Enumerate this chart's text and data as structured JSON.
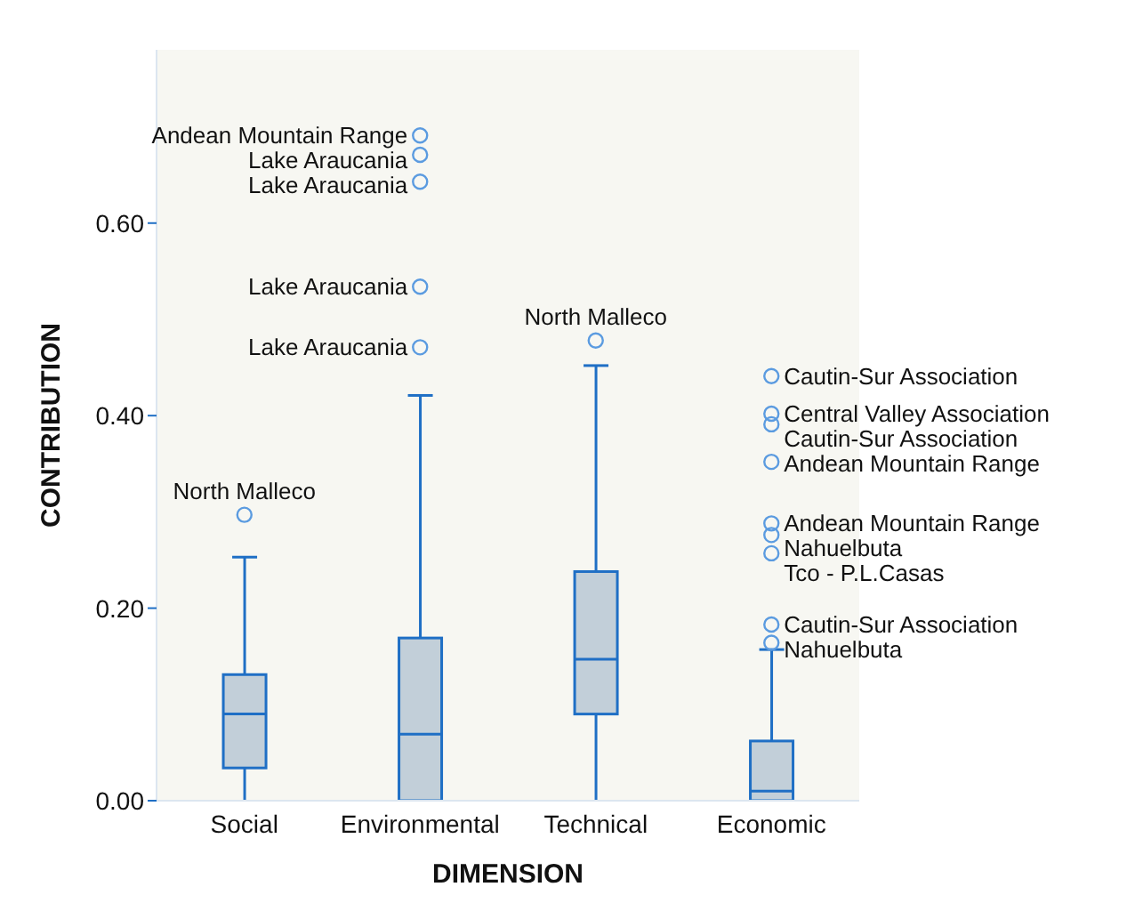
{
  "chart_data": {
    "type": "box",
    "xlabel": "DIMENSION",
    "ylabel": "CONTRIBUTION",
    "categories": [
      "Social",
      "Environmental",
      "Technical",
      "Economic"
    ],
    "color": "#1f6fc5",
    "marker": "circle",
    "boxes": [
      {
        "low": 0,
        "q1": 0.034,
        "median": 0.09,
        "q3": 0.131,
        "high": 0.253,
        "outliers": [
          0.297
        ]
      },
      {
        "low": 0,
        "q1": 0,
        "median": 0.069,
        "q3": 0.169,
        "high": 0.421,
        "outliers": [
          0.691,
          0.671,
          0.643,
          0.534,
          0.471
        ]
      },
      {
        "low": 0,
        "q1": 0.09,
        "median": 0.147,
        "q3": 0.238,
        "high": 0.452,
        "outliers": [
          0.478
        ]
      },
      {
        "low": 0,
        "q1": 0,
        "median": 0.01,
        "q3": 0.062,
        "high": 0.157,
        "outliers": [
          0.441,
          0.402,
          0.391,
          0.352,
          0.288,
          0.276,
          0.257,
          0.183,
          0.164
        ]
      }
    ],
    "ylim": [
      0,
      0.78
    ],
    "yticks": [
      {
        "value": 0,
        "label": "0.00"
      },
      {
        "value": 0.2,
        "label": "0.20"
      },
      {
        "value": 0.4,
        "label": "0.40"
      },
      {
        "value": 0.6,
        "label": "0.60"
      }
    ],
    "grid": false,
    "annotations": [
      "North Malleco",
      "Andean Mountain Range",
      "Lake Araucania",
      "Lake Araucania",
      "Lake Araucania",
      "Lake Araucania",
      "North Malleco",
      "Cautin-Sur Association",
      "Central Valley Association",
      "Cautin-Sur Association",
      "Andean Mountain Range",
      "Andean Mountain Range",
      "Nahuelbuta",
      "Tco - P.L.Casas",
      "Cautin-Sur Association",
      "Nahuelbuta"
    ]
  }
}
